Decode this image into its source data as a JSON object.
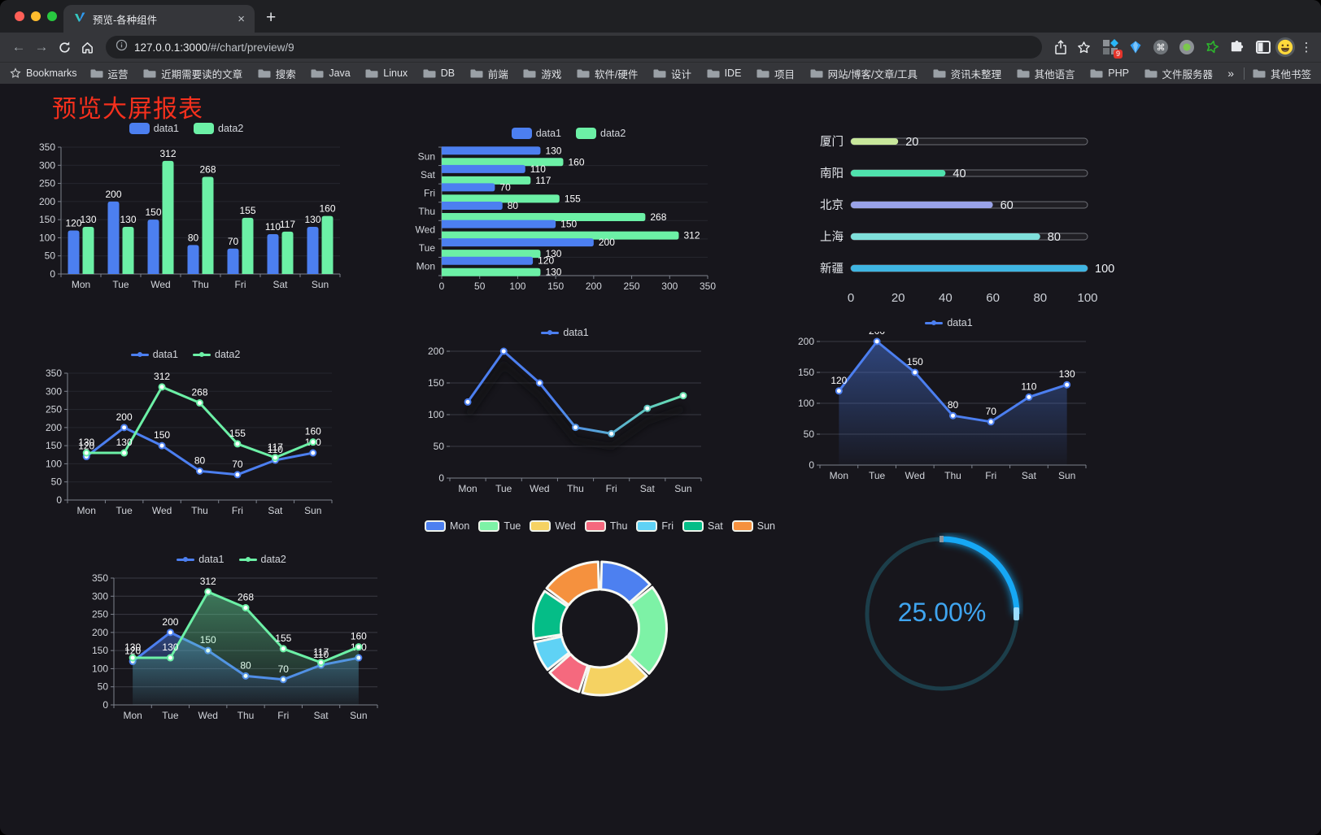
{
  "browser": {
    "tab_title": "预览-各种组件",
    "url_host": "127.0.0.1:3000",
    "url_path": "/#/chart/preview/9",
    "bookmarks_label": "Bookmarks",
    "bookmark_folders": [
      "运营",
      "近期需要读的文章",
      "搜索",
      "Java",
      "Linux",
      "DB",
      "前端",
      "游戏",
      "软件/硬件",
      "设计",
      "IDE",
      "项目",
      "网站/博客/文章/工具",
      "资讯未整理",
      "其他语言",
      "PHP",
      "文件服务器"
    ],
    "overflow_symbol": "»",
    "other_bookmarks_label": "其他书签",
    "extension_badge_count": "9"
  },
  "page": {
    "title": "预览大屏报表",
    "title_color": "#f5301d"
  },
  "chart_data": [
    {
      "id": "bar-grouped",
      "type": "bar",
      "categories": [
        "Mon",
        "Tue",
        "Wed",
        "Thu",
        "Fri",
        "Sat",
        "Sun"
      ],
      "series": [
        {
          "name": "data1",
          "color": "#4C7FF0",
          "values": [
            120,
            200,
            150,
            80,
            70,
            110,
            130
          ]
        },
        {
          "name": "data2",
          "color": "#6CF0A6",
          "values": [
            130,
            130,
            312,
            268,
            155,
            117,
            160
          ]
        }
      ],
      "ylim": [
        0,
        350
      ],
      "ystep": 50,
      "legend_marker": "rect",
      "grid": "#26262e",
      "ml": 45,
      "mr": 10
    },
    {
      "id": "bar-horizontal",
      "type": "bar-h",
      "categories": [
        "Mon",
        "Tue",
        "Wed",
        "Thu",
        "Fri",
        "Sat",
        "Sun"
      ],
      "series": [
        {
          "name": "data1",
          "color": "#4C7FF0",
          "values": [
            120,
            200,
            150,
            80,
            70,
            110,
            130
          ]
        },
        {
          "name": "data2",
          "color": "#6CF0A6",
          "values": [
            130,
            130,
            312,
            268,
            155,
            117,
            160
          ]
        }
      ],
      "xlim": [
        0,
        350
      ],
      "xstep": 50,
      "legend_marker": "rect",
      "grid": "#26262e",
      "ml": 40,
      "mr": 25
    },
    {
      "id": "city-progress",
      "type": "progress",
      "items": [
        {
          "label": "厦门",
          "value": 20,
          "color": "#C8E79B"
        },
        {
          "label": "南阳",
          "value": 40,
          "color": "#4FE2AD"
        },
        {
          "label": "北京",
          "value": 60,
          "color": "#9AA3E8"
        },
        {
          "label": "上海",
          "value": 80,
          "color": "#7FE0DB"
        },
        {
          "label": "新疆",
          "value": 100,
          "color": "#3FB5E2"
        }
      ],
      "xlim": [
        0,
        100
      ],
      "xticks": [
        0,
        20,
        40,
        60,
        80,
        100
      ]
    },
    {
      "id": "line-dual",
      "type": "line",
      "categories": [
        "Mon",
        "Tue",
        "Wed",
        "Thu",
        "Fri",
        "Sat",
        "Sun"
      ],
      "series": [
        {
          "name": "data1",
          "color": "#4C7FF0",
          "values": [
            120,
            200,
            150,
            80,
            70,
            110,
            130
          ],
          "labels": true
        },
        {
          "name": "data2",
          "color": "#6CF0A6",
          "values": [
            130,
            130,
            312,
            268,
            155,
            117,
            160
          ],
          "labels": true
        }
      ],
      "ylim": [
        0,
        350
      ],
      "ystep": 50,
      "legend_marker": "line",
      "grid": "#26262e",
      "y_axis_line": true,
      "ml": 45,
      "mr": 10
    },
    {
      "id": "line-gradient",
      "type": "line",
      "categories": [
        "Mon",
        "Tue",
        "Wed",
        "Thu",
        "Fri",
        "Sat",
        "Sun"
      ],
      "series": [
        {
          "name": "data1",
          "gradient": [
            "#4C7FF0",
            "#6CF0A6"
          ],
          "values": [
            120,
            200,
            150,
            80,
            70,
            110,
            130
          ],
          "labels": false
        }
      ],
      "ylim": [
        0,
        200
      ],
      "ystep": 50,
      "legend_marker": "line",
      "grid": "#3a3a43",
      "shadow": true,
      "ml": 40,
      "mr": 14
    },
    {
      "id": "area-single",
      "type": "line",
      "categories": [
        "Mon",
        "Tue",
        "Wed",
        "Thu",
        "Fri",
        "Sat",
        "Sun"
      ],
      "series": [
        {
          "name": "data1",
          "color": "#4C7FF0",
          "values": [
            120,
            200,
            150,
            80,
            70,
            110,
            130
          ],
          "labels": true,
          "area": true
        }
      ],
      "ylim": [
        0,
        200
      ],
      "ystep": 50,
      "legend_marker": "line",
      "grid": "#3a3a43",
      "ml": 30,
      "mr": 20
    },
    {
      "id": "area-dual",
      "type": "line",
      "categories": [
        "Mon",
        "Tue",
        "Wed",
        "Thu",
        "Fri",
        "Sat",
        "Sun"
      ],
      "series": [
        {
          "name": "data1",
          "color": "#4C7FF0",
          "values": [
            120,
            200,
            150,
            80,
            70,
            110,
            130
          ],
          "labels": true,
          "area": true
        },
        {
          "name": "data2",
          "color": "#6CF0A6",
          "values": [
            130,
            130,
            312,
            268,
            155,
            117,
            160
          ],
          "labels": true,
          "area": true
        }
      ],
      "ylim": [
        0,
        350
      ],
      "ystep": 50,
      "legend_marker": "line",
      "grid": "#3a3a43",
      "y_axis_line": true,
      "ml": 45,
      "mr": 10
    },
    {
      "id": "week-donut",
      "type": "pie",
      "categories": [
        "Mon",
        "Tue",
        "Wed",
        "Thu",
        "Fri",
        "Sat",
        "Sun"
      ],
      "values": [
        120,
        200,
        150,
        80,
        70,
        110,
        130
      ],
      "colors": [
        "#4D80F0",
        "#7DF2A6",
        "#F5D262",
        "#F5697E",
        "#5FD2F5",
        "#05BD87",
        "#F5913E"
      ],
      "legend_marker": "rect-border"
    },
    {
      "id": "percent-gauge",
      "type": "gauge",
      "percent": 25,
      "value_label": "25.00%",
      "color": "#14A8F5",
      "track_color": "#1C3E4A",
      "text_color": "#3FA5F0"
    }
  ]
}
